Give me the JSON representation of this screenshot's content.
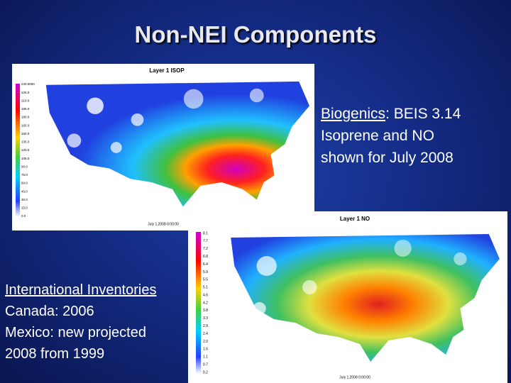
{
  "title": "Non-NEI Components",
  "biogenics": {
    "label": "Biogenics",
    "text": ": BEIS 3.14",
    "lines": [
      "Isoprene and NO",
      "shown for July 2008"
    ]
  },
  "international": {
    "label": "International Inventories",
    "lines": [
      "Canada: 2006",
      "Mexico: new projected",
      "2008 from 1999"
    ]
  },
  "maps": [
    {
      "title": "Layer 1 ISOP",
      "date": "July 1,2008 0:00:00",
      "colorbar": [
        "240.0000",
        "225.0",
        "210.0",
        "195.0",
        "180.0",
        "165.0",
        "150.0",
        "135.0",
        "120.0",
        "105.0",
        "90.0",
        "75.0",
        "60.0",
        "45.0",
        "30.0",
        "15.0",
        "0.0"
      ]
    },
    {
      "title": "Layer 1 NO",
      "date": "July 1,2008 0:00:00",
      "colorbar": [
        "8.1",
        "7.7",
        "7.2",
        "6.8",
        "6.4",
        "5.9",
        "5.5",
        "5.1",
        "4.6",
        "4.2",
        "3.8",
        "3.3",
        "2.9",
        "2.4",
        "2.0",
        "1.6",
        "1.1",
        "0.7",
        "0.2"
      ]
    }
  ]
}
